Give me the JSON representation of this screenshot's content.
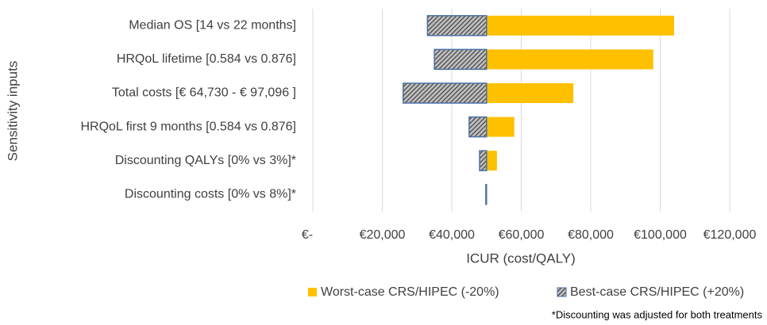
{
  "chart_data": {
    "type": "tornado",
    "x_label": "ICUR (cost/QALY)",
    "y_label": "Sensitivity inputs",
    "footnote": "*Discounting was adjusted for both treatments",
    "categories": [
      "Median OS [14 vs 22 months]",
      "HRQoL lifetime [0.584 vs 0.876]",
      "Total costs [€ 64,730 - € 97,096 ]",
      "HRQoL first 9 months [0.584 vs 0.876]",
      "Discounting QALYs [0% vs 3%]*",
      "Discounting costs [0% vs 8%]*"
    ],
    "base": 50000,
    "series": [
      {
        "name": "Worst-case CRS/HIPEC (-20%)",
        "color": "#ffc000",
        "values": [
          104000,
          98000,
          75000,
          58000,
          53000,
          50100
        ]
      },
      {
        "name": "Best-case CRS/HIPEC (+20%)",
        "color": "#44546a",
        "pattern": "hatched",
        "values": [
          33000,
          35000,
          26000,
          45000,
          48000,
          49800
        ]
      }
    ],
    "xlim": [
      0,
      120000
    ],
    "xticks": [
      {
        "value": 0,
        "label": "€-"
      },
      {
        "value": 20000,
        "label": "€20,000"
      },
      {
        "value": 40000,
        "label": "€40,000"
      },
      {
        "value": 60000,
        "label": "€60,000"
      },
      {
        "value": 80000,
        "label": "€80,000"
      },
      {
        "value": 100000,
        "label": "€100,000"
      },
      {
        "value": 120000,
        "label": "€120,000"
      }
    ],
    "grid": true
  }
}
